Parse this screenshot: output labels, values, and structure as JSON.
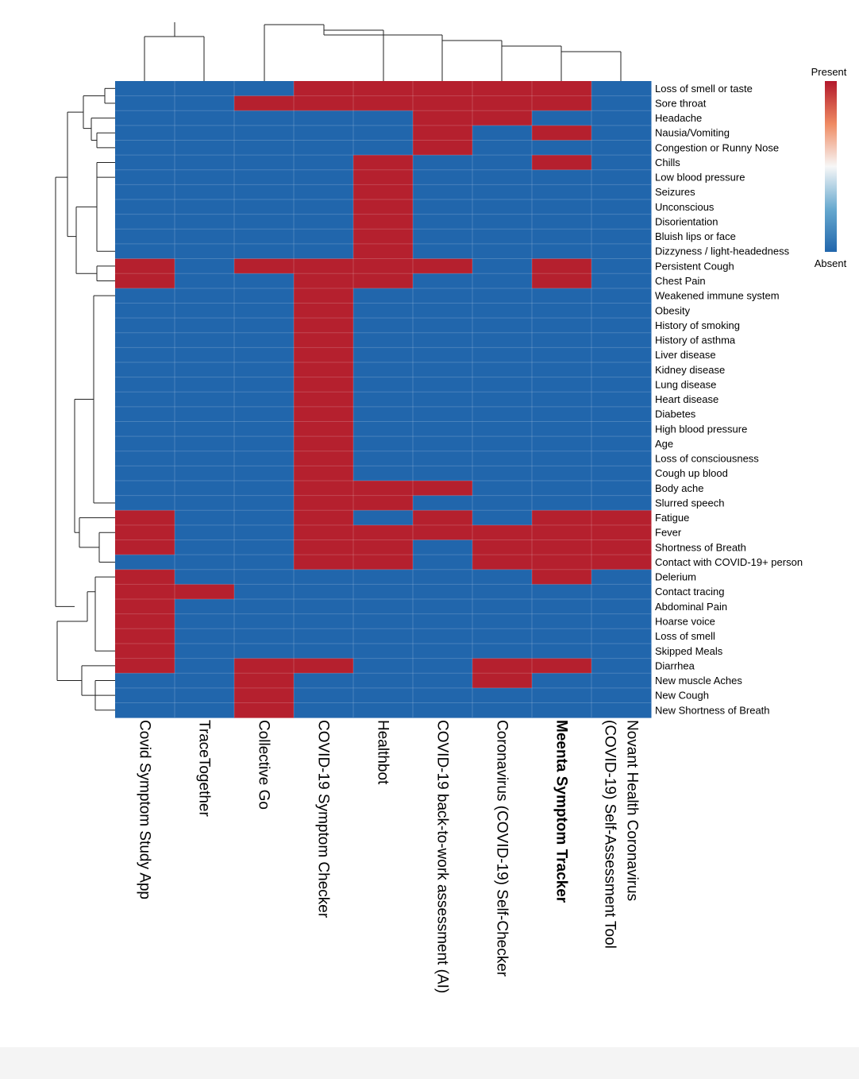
{
  "chart_data": {
    "type": "heatmap",
    "title": "",
    "columns": [
      "Covid Symptom Study App",
      "TraceTogether",
      "Collective Go",
      "COVID-19 Symptom Checker",
      "Healthbot",
      "COVID-19 back-to-work assessment (AI)",
      "Coronavirus (COVID-19) Self-Checker",
      "Meenta Symptom Tracker",
      "Novant Health Coronavirus (COVID-19) Self-Assessment Tool"
    ],
    "column_label_lines": [
      [
        "Covid Symptom Study App"
      ],
      [
        "TraceTogether"
      ],
      [
        "Collective Go"
      ],
      [
        "COVID-19 Symptom Checker"
      ],
      [
        "Healthbot"
      ],
      [
        "COVID-19 back-to-work assessment (AI)"
      ],
      [
        "Coronavirus (COVID-19) Self-Checker"
      ],
      [
        "Meenta  Symptom  Tracker"
      ],
      [
        "Novant Health Coronavirus",
        "(COVID-19) Self-Assessment Tool"
      ]
    ],
    "highlighted_column": "Meenta Symptom Tracker",
    "rows": [
      "Loss of smell or taste",
      "Sore throat",
      "Headache",
      "Nausia/Vomiting",
      "Congestion or Runny Nose",
      "Chills",
      "Low blood pressure",
      "Seizures",
      "Unconscious",
      "Disorientation",
      "Bluish lips or face",
      "Dizzyness / light-headedness",
      "Persistent Cough",
      "Chest Pain",
      "Weakened immune system",
      "Obesity",
      "History of smoking",
      "History of asthma",
      "Liver disease",
      "Kidney disease",
      "Lung disease",
      "Heart disease",
      "Diabetes",
      "High blood pressure",
      "Age",
      "Loss of consciousness",
      "Cough up blood",
      "Body ache",
      "Slurred speech",
      "Fatigue",
      "Fever",
      "Shortness of Breath",
      "Contact with COVID-19+ person",
      "Delerium",
      "Contact tracing",
      "Abdominal Pain",
      "Hoarse voice",
      "Loss of smell",
      "Skipped Meals",
      "Diarrhea",
      "New muscle Aches",
      "New Cough",
      "New Shortness of Breath"
    ],
    "values": [
      [
        0,
        0,
        0,
        1,
        1,
        1,
        1,
        1,
        0
      ],
      [
        0,
        0,
        1,
        1,
        1,
        1,
        1,
        1,
        0
      ],
      [
        0,
        0,
        0,
        0,
        0,
        1,
        1,
        0,
        0
      ],
      [
        0,
        0,
        0,
        0,
        0,
        1,
        0,
        1,
        0
      ],
      [
        0,
        0,
        0,
        0,
        0,
        1,
        0,
        0,
        0
      ],
      [
        0,
        0,
        0,
        0,
        1,
        0,
        0,
        1,
        0
      ],
      [
        0,
        0,
        0,
        0,
        1,
        0,
        0,
        0,
        0
      ],
      [
        0,
        0,
        0,
        0,
        1,
        0,
        0,
        0,
        0
      ],
      [
        0,
        0,
        0,
        0,
        1,
        0,
        0,
        0,
        0
      ],
      [
        0,
        0,
        0,
        0,
        1,
        0,
        0,
        0,
        0
      ],
      [
        0,
        0,
        0,
        0,
        1,
        0,
        0,
        0,
        0
      ],
      [
        0,
        0,
        0,
        0,
        1,
        0,
        0,
        0,
        0
      ],
      [
        1,
        0,
        1,
        1,
        1,
        1,
        0,
        1,
        0
      ],
      [
        1,
        0,
        0,
        1,
        1,
        0,
        0,
        1,
        0
      ],
      [
        0,
        0,
        0,
        1,
        0,
        0,
        0,
        0,
        0
      ],
      [
        0,
        0,
        0,
        1,
        0,
        0,
        0,
        0,
        0
      ],
      [
        0,
        0,
        0,
        1,
        0,
        0,
        0,
        0,
        0
      ],
      [
        0,
        0,
        0,
        1,
        0,
        0,
        0,
        0,
        0
      ],
      [
        0,
        0,
        0,
        1,
        0,
        0,
        0,
        0,
        0
      ],
      [
        0,
        0,
        0,
        1,
        0,
        0,
        0,
        0,
        0
      ],
      [
        0,
        0,
        0,
        1,
        0,
        0,
        0,
        0,
        0
      ],
      [
        0,
        0,
        0,
        1,
        0,
        0,
        0,
        0,
        0
      ],
      [
        0,
        0,
        0,
        1,
        0,
        0,
        0,
        0,
        0
      ],
      [
        0,
        0,
        0,
        1,
        0,
        0,
        0,
        0,
        0
      ],
      [
        0,
        0,
        0,
        1,
        0,
        0,
        0,
        0,
        0
      ],
      [
        0,
        0,
        0,
        1,
        0,
        0,
        0,
        0,
        0
      ],
      [
        0,
        0,
        0,
        1,
        0,
        0,
        0,
        0,
        0
      ],
      [
        0,
        0,
        0,
        1,
        1,
        1,
        0,
        0,
        0
      ],
      [
        0,
        0,
        0,
        1,
        1,
        0,
        0,
        0,
        0
      ],
      [
        1,
        0,
        0,
        1,
        0,
        1,
        0,
        1,
        1
      ],
      [
        1,
        0,
        0,
        1,
        1,
        1,
        1,
        1,
        1
      ],
      [
        1,
        0,
        0,
        1,
        1,
        0,
        1,
        1,
        1
      ],
      [
        0,
        0,
        0,
        1,
        1,
        0,
        1,
        1,
        1
      ],
      [
        1,
        0,
        0,
        0,
        0,
        0,
        0,
        1,
        0
      ],
      [
        1,
        1,
        0,
        0,
        0,
        0,
        0,
        0,
        0
      ],
      [
        1,
        0,
        0,
        0,
        0,
        0,
        0,
        0,
        0
      ],
      [
        1,
        0,
        0,
        0,
        0,
        0,
        0,
        0,
        0
      ],
      [
        1,
        0,
        0,
        0,
        0,
        0,
        0,
        0,
        0
      ],
      [
        1,
        0,
        0,
        0,
        0,
        0,
        0,
        0,
        0
      ],
      [
        1,
        0,
        1,
        1,
        0,
        0,
        1,
        1,
        0
      ],
      [
        0,
        0,
        1,
        0,
        0,
        0,
        1,
        0,
        0
      ],
      [
        0,
        0,
        1,
        0,
        0,
        0,
        0,
        0,
        0
      ],
      [
        0,
        0,
        1,
        0,
        0,
        0,
        0,
        0,
        0
      ]
    ],
    "legend": {
      "high_label": "Present",
      "low_label": "Absent",
      "present_color": "#b5202e",
      "absent_color": "#2166ac",
      "placement": "top-right"
    },
    "row_dendrogram": "left",
    "column_dendrogram": "top"
  }
}
